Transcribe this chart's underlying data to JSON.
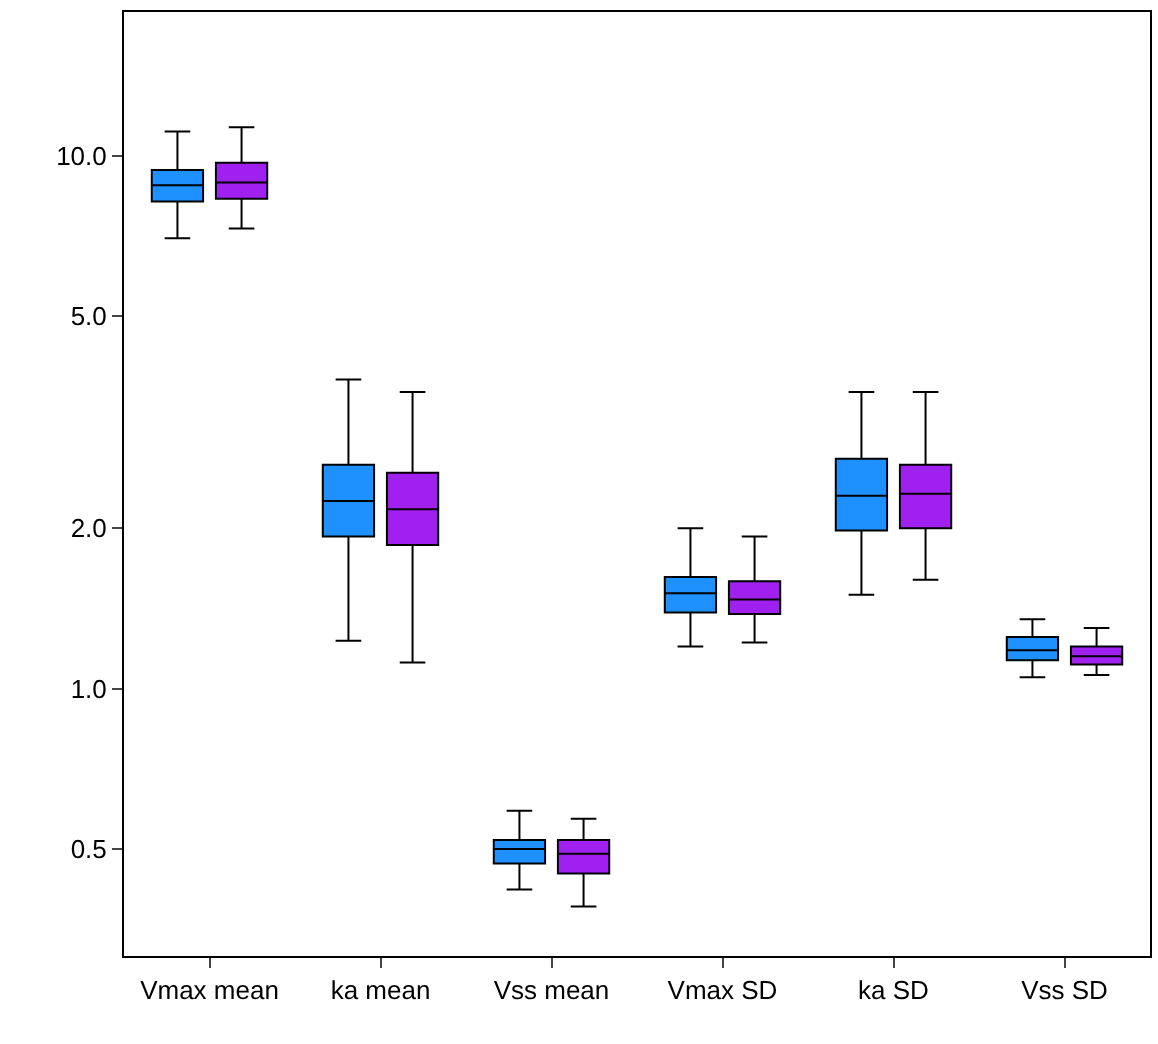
{
  "chart_data": {
    "type": "box",
    "categories": [
      "Vmax mean",
      "ka mean",
      "Vss mean",
      "Vmax SD",
      "ka SD",
      "Vss SD"
    ],
    "log": "y",
    "ylim": [
      0.315,
      18.6
    ],
    "yticks": [
      {
        "value": 0.5,
        "label": "0.5"
      },
      {
        "value": 1,
        "label": "1.0"
      },
      {
        "value": 2,
        "label": "2.0"
      },
      {
        "value": 5,
        "label": "5.0"
      },
      {
        "value": 10,
        "label": "10.0"
      }
    ],
    "series": [
      {
        "color": "#1e90ff",
        "boxes": [
          {
            "low": 7.0,
            "q1": 8.2,
            "median": 8.8,
            "q3": 9.4,
            "high": 11.1
          },
          {
            "low": 1.23,
            "q1": 1.93,
            "median": 2.25,
            "q3": 2.63,
            "high": 3.8
          },
          {
            "low": 0.42,
            "q1": 0.47,
            "median": 0.5,
            "q3": 0.52,
            "high": 0.59
          },
          {
            "low": 1.2,
            "q1": 1.39,
            "median": 1.51,
            "q3": 1.62,
            "high": 2.0
          },
          {
            "low": 1.5,
            "q1": 1.98,
            "median": 2.3,
            "q3": 2.7,
            "high": 3.6
          },
          {
            "low": 1.05,
            "q1": 1.13,
            "median": 1.18,
            "q3": 1.25,
            "high": 1.35
          }
        ]
      },
      {
        "color": "#a020f0",
        "boxes": [
          {
            "low": 7.3,
            "q1": 8.3,
            "median": 8.9,
            "q3": 9.7,
            "high": 11.3
          },
          {
            "low": 1.12,
            "q1": 1.86,
            "median": 2.17,
            "q3": 2.54,
            "high": 3.6
          },
          {
            "low": 0.39,
            "q1": 0.45,
            "median": 0.49,
            "q3": 0.52,
            "high": 0.57
          },
          {
            "low": 1.22,
            "q1": 1.38,
            "median": 1.47,
            "q3": 1.59,
            "high": 1.93
          },
          {
            "low": 1.6,
            "q1": 2.0,
            "median": 2.32,
            "q3": 2.63,
            "high": 3.6
          },
          {
            "low": 1.06,
            "q1": 1.11,
            "median": 1.15,
            "q3": 1.2,
            "high": 1.3
          }
        ]
      }
    ]
  }
}
